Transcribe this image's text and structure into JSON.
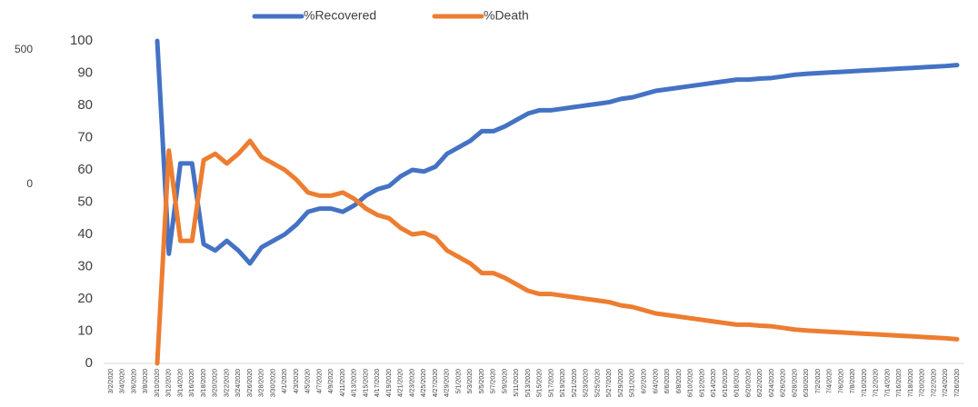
{
  "chart_data": {
    "type": "line",
    "categories": [
      "3/2/2020",
      "3/4/2020",
      "3/6/2020",
      "3/8/2020",
      "3/10/2020",
      "3/12/2020",
      "3/14/2020",
      "3/16/2020",
      "3/18/2020",
      "3/20/2020",
      "3/22/2020",
      "3/24/2020",
      "3/26/2020",
      "3/28/2020",
      "3/30/2020",
      "4/1/2020",
      "4/3/2020",
      "4/5/2020",
      "4/7/2020",
      "4/9/2020",
      "4/11/2020",
      "4/13/2020",
      "4/15/2020",
      "4/17/2020",
      "4/19/2020",
      "4/21/2020",
      "4/23/2020",
      "4/25/2020",
      "4/27/2020",
      "4/29/2020",
      "5/1/2020",
      "5/3/2020",
      "5/5/2020",
      "5/7/2020",
      "5/9/2020",
      "5/11/2020",
      "5/13/2020",
      "5/15/2020",
      "5/17/2020",
      "5/19/2020",
      "5/21/2020",
      "5/23/2020",
      "5/25/2020",
      "5/27/2020",
      "5/29/2020",
      "5/31/2020",
      "6/2/2020",
      "6/4/2020",
      "6/6/2020",
      "6/8/2020",
      "6/10/2020",
      "6/12/2020",
      "6/14/2020",
      "6/16/2020",
      "6/18/2020",
      "6/20/2020",
      "6/22/2020",
      "6/24/2020",
      "6/26/2020",
      "6/28/2020",
      "6/30/2020",
      "7/2/2020",
      "7/4/2020",
      "7/6/2020",
      "7/8/2020",
      "7/10/2020",
      "7/12/2020",
      "7/14/2020",
      "7/16/2020",
      "7/18/2020",
      "7/20/2020",
      "7/22/2020",
      "7/24/2020",
      "7/26/2020"
    ],
    "series": [
      {
        "name": "%Recovered",
        "color": "#4472c4",
        "values": [
          null,
          null,
          null,
          null,
          100,
          34,
          62,
          62,
          37,
          35,
          38,
          35,
          31,
          36,
          38,
          40,
          43,
          47,
          48,
          48,
          47,
          49,
          52,
          54,
          55,
          58,
          60,
          59.5,
          61,
          65,
          67,
          69,
          72,
          72,
          73.5,
          75.5,
          77.5,
          78.5,
          78.5,
          79,
          79.5,
          80,
          80.5,
          81,
          82,
          82.5,
          83.5,
          84.5,
          85,
          85.5,
          86,
          86.5,
          87,
          87.5,
          88,
          88,
          88.3,
          88.5,
          89,
          89.5,
          89.8,
          90,
          90.2,
          90.4,
          90.6,
          90.8,
          91,
          91.2,
          91.4,
          91.6,
          91.8,
          92,
          92.2,
          92.5
        ]
      },
      {
        "name": "%Death",
        "color": "#ed7d31",
        "values": [
          null,
          null,
          null,
          null,
          0,
          66,
          38,
          38,
          63,
          65,
          62,
          65,
          69,
          64,
          62,
          60,
          57,
          53,
          52,
          52,
          53,
          51,
          48,
          46,
          45,
          42,
          40,
          40.5,
          39,
          35,
          33,
          31,
          28,
          28,
          26.5,
          24.5,
          22.5,
          21.5,
          21.5,
          21,
          20.5,
          20,
          19.5,
          19,
          18,
          17.5,
          16.5,
          15.5,
          15,
          14.5,
          14,
          13.5,
          13,
          12.5,
          12,
          12,
          11.7,
          11.5,
          11,
          10.5,
          10.2,
          10,
          9.8,
          9.6,
          9.4,
          9.2,
          9,
          8.8,
          8.6,
          8.4,
          8.2,
          8,
          7.8,
          7.5
        ]
      }
    ],
    "ylim": [
      0,
      100
    ],
    "yticks": [
      0,
      10,
      20,
      30,
      40,
      50,
      60,
      70,
      80,
      90,
      100
    ],
    "y2lim": [
      -666,
      534
    ],
    "y2ticks": [
      0,
      500
    ],
    "grid": false,
    "legend": "top"
  }
}
